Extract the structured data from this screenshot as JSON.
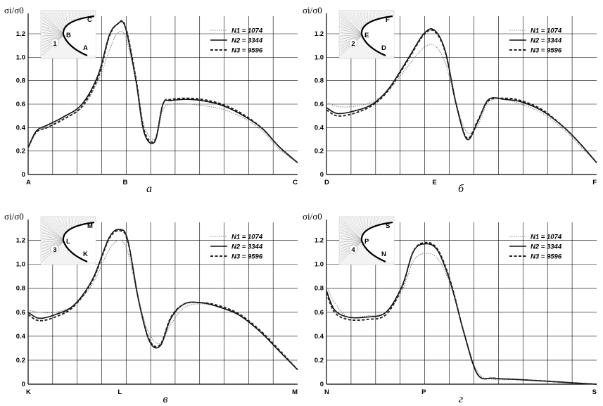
{
  "figure": {
    "y_label": "σi/σ0",
    "legend": [
      "N1 = 1074",
      "N2 = 3344",
      "N3 = 9596"
    ]
  },
  "chart_data": [
    {
      "type": "line",
      "caption": "а",
      "inset_label": "1",
      "inset_points": [
        "B",
        "C",
        "A"
      ],
      "x_ticks": [
        "A",
        "B",
        "C"
      ],
      "ylim": [
        0,
        1.35
      ],
      "y_ticks": [
        "0",
        "0.2",
        "0.4",
        "0.6",
        "0.8",
        "1.0",
        "1.2"
      ],
      "grid": true,
      "legend_position": "top-right",
      "series": [
        {
          "name": "N1 = 1074",
          "x": [
            0,
            0.03,
            0.07,
            0.13,
            0.2,
            0.26,
            0.3,
            0.33,
            0.36,
            0.4,
            0.43,
            0.47,
            0.5,
            0.53,
            0.6,
            0.67,
            0.73,
            0.8,
            0.87,
            0.93,
            1
          ],
          "y": [
            0.22,
            0.36,
            0.4,
            0.48,
            0.57,
            0.8,
            1.05,
            1.2,
            1.18,
            0.8,
            0.42,
            0.3,
            0.55,
            0.6,
            0.6,
            0.58,
            0.55,
            0.48,
            0.37,
            0.22,
            0.1
          ]
        },
        {
          "name": "N2 = 3344",
          "x": [
            0,
            0.03,
            0.07,
            0.13,
            0.2,
            0.26,
            0.3,
            0.33,
            0.36,
            0.4,
            0.43,
            0.47,
            0.5,
            0.53,
            0.6,
            0.67,
            0.73,
            0.8,
            0.87,
            0.93,
            1
          ],
          "y": [
            0.23,
            0.37,
            0.42,
            0.49,
            0.6,
            0.85,
            1.18,
            1.28,
            1.26,
            0.8,
            0.36,
            0.28,
            0.6,
            0.63,
            0.64,
            0.62,
            0.58,
            0.5,
            0.39,
            0.24,
            0.1
          ]
        },
        {
          "name": "N3 = 9596",
          "x": [
            0,
            0.03,
            0.07,
            0.13,
            0.2,
            0.26,
            0.3,
            0.33,
            0.36,
            0.4,
            0.43,
            0.47,
            0.5,
            0.53,
            0.6,
            0.67,
            0.73,
            0.8,
            0.87,
            0.93,
            1
          ],
          "y": [
            0.23,
            0.36,
            0.4,
            0.47,
            0.58,
            0.83,
            1.17,
            1.28,
            1.27,
            0.82,
            0.38,
            0.29,
            0.6,
            0.64,
            0.65,
            0.63,
            0.59,
            0.51,
            0.39,
            0.24,
            0.1
          ]
        }
      ]
    },
    {
      "type": "line",
      "caption": "б",
      "inset_label": "2",
      "inset_points": [
        "E",
        "F",
        "D"
      ],
      "x_ticks": [
        "D",
        "E",
        "F"
      ],
      "ylim": [
        0,
        1.35
      ],
      "y_ticks": [
        "0",
        "0.2",
        "0.4",
        "0.6",
        "0.8",
        "1.0",
        "1.2"
      ],
      "grid": true,
      "legend_position": "top-right",
      "series": [
        {
          "name": "N1 = 1074",
          "x": [
            0,
            0.04,
            0.1,
            0.17,
            0.23,
            0.3,
            0.36,
            0.4,
            0.44,
            0.48,
            0.52,
            0.56,
            0.6,
            0.66,
            0.72,
            0.8,
            0.88,
            0.94,
            1
          ],
          "y": [
            0.62,
            0.58,
            0.58,
            0.62,
            0.72,
            0.92,
            1.08,
            1.1,
            0.95,
            0.6,
            0.36,
            0.42,
            0.62,
            0.64,
            0.6,
            0.52,
            0.38,
            0.24,
            0.1
          ]
        },
        {
          "name": "N2 = 3344",
          "x": [
            0,
            0.04,
            0.1,
            0.17,
            0.23,
            0.3,
            0.36,
            0.4,
            0.44,
            0.48,
            0.52,
            0.56,
            0.6,
            0.66,
            0.72,
            0.8,
            0.88,
            0.94,
            1
          ],
          "y": [
            0.57,
            0.52,
            0.54,
            0.6,
            0.73,
            0.98,
            1.2,
            1.23,
            1.05,
            0.6,
            0.3,
            0.45,
            0.64,
            0.64,
            0.62,
            0.54,
            0.4,
            0.26,
            0.1
          ]
        },
        {
          "name": "N3 = 9596",
          "x": [
            0,
            0.04,
            0.1,
            0.17,
            0.23,
            0.3,
            0.36,
            0.4,
            0.44,
            0.48,
            0.52,
            0.56,
            0.6,
            0.66,
            0.72,
            0.8,
            0.88,
            0.94,
            1
          ],
          "y": [
            0.55,
            0.5,
            0.52,
            0.59,
            0.72,
            0.97,
            1.19,
            1.22,
            1.04,
            0.6,
            0.31,
            0.46,
            0.63,
            0.65,
            0.63,
            0.55,
            0.4,
            0.26,
            0.1
          ]
        }
      ]
    },
    {
      "type": "line",
      "caption": "в",
      "inset_label": "3",
      "inset_points": [
        "L",
        "M",
        "K"
      ],
      "x_ticks": [
        "K",
        "L",
        "M"
      ],
      "ylim": [
        0,
        1.35
      ],
      "y_ticks": [
        "0",
        "0.2",
        "0.4",
        "0.6",
        "0.8",
        "1.0",
        "1.2"
      ],
      "grid": true,
      "legend_position": "top-right",
      "series": [
        {
          "name": "N1 = 1074",
          "x": [
            0,
            0.04,
            0.1,
            0.17,
            0.24,
            0.3,
            0.34,
            0.37,
            0.41,
            0.45,
            0.49,
            0.53,
            0.58,
            0.64,
            0.7,
            0.78,
            0.86,
            0.93,
            1
          ],
          "y": [
            0.62,
            0.6,
            0.6,
            0.66,
            0.84,
            1.12,
            1.2,
            1.1,
            0.7,
            0.42,
            0.34,
            0.5,
            0.64,
            0.67,
            0.65,
            0.58,
            0.44,
            0.28,
            0.12
          ]
        },
        {
          "name": "N2 = 3344",
          "x": [
            0,
            0.04,
            0.1,
            0.17,
            0.24,
            0.3,
            0.34,
            0.37,
            0.41,
            0.45,
            0.49,
            0.53,
            0.58,
            0.64,
            0.7,
            0.78,
            0.86,
            0.93,
            1
          ],
          "y": [
            0.6,
            0.55,
            0.58,
            0.66,
            0.88,
            1.22,
            1.29,
            1.2,
            0.7,
            0.36,
            0.32,
            0.55,
            0.67,
            0.68,
            0.65,
            0.58,
            0.44,
            0.28,
            0.12
          ]
        },
        {
          "name": "N3 = 9596",
          "x": [
            0,
            0.04,
            0.1,
            0.17,
            0.24,
            0.3,
            0.34,
            0.37,
            0.41,
            0.45,
            0.49,
            0.53,
            0.58,
            0.64,
            0.7,
            0.78,
            0.86,
            0.93,
            1
          ],
          "y": [
            0.58,
            0.53,
            0.56,
            0.65,
            0.87,
            1.21,
            1.28,
            1.19,
            0.7,
            0.37,
            0.33,
            0.56,
            0.67,
            0.68,
            0.66,
            0.59,
            0.45,
            0.29,
            0.12
          ]
        }
      ]
    },
    {
      "type": "line",
      "caption": "г",
      "inset_label": "4",
      "inset_points": [
        "P",
        "S",
        "N"
      ],
      "x_ticks": [
        "N",
        "P",
        "S"
      ],
      "ylim": [
        0,
        1.35
      ],
      "y_ticks": [
        "0",
        "0.2",
        "0.4",
        "0.6",
        "0.8",
        "1.0",
        "1.2"
      ],
      "grid": true,
      "legend_position": "top-right",
      "series": [
        {
          "name": "N1 = 1074",
          "x": [
            0,
            0.03,
            0.08,
            0.15,
            0.22,
            0.28,
            0.32,
            0.36,
            0.41,
            0.46,
            0.51,
            0.56,
            0.62,
            0.7,
            0.78,
            0.85,
            0.92,
            1
          ],
          "y": [
            0.82,
            0.68,
            0.56,
            0.57,
            0.6,
            0.78,
            1.02,
            1.09,
            1.05,
            0.82,
            0.42,
            0.1,
            0.04,
            0.04,
            0.03,
            0.02,
            0.01,
            0
          ]
        },
        {
          "name": "N2 = 3344",
          "x": [
            0,
            0.03,
            0.08,
            0.15,
            0.22,
            0.28,
            0.32,
            0.36,
            0.41,
            0.46,
            0.51,
            0.56,
            0.62,
            0.7,
            0.78,
            0.85,
            0.92,
            1
          ],
          "y": [
            0.78,
            0.62,
            0.56,
            0.56,
            0.6,
            0.82,
            1.1,
            1.17,
            1.12,
            0.84,
            0.42,
            0.08,
            0.05,
            0.04,
            0.03,
            0.02,
            0.01,
            0
          ]
        },
        {
          "name": "N3 = 9596",
          "x": [
            0,
            0.03,
            0.08,
            0.15,
            0.22,
            0.28,
            0.32,
            0.36,
            0.41,
            0.46,
            0.51,
            0.56,
            0.62,
            0.7,
            0.78,
            0.85,
            0.92,
            1
          ],
          "y": [
            0.76,
            0.6,
            0.54,
            0.54,
            0.58,
            0.81,
            1.1,
            1.18,
            1.13,
            0.85,
            0.42,
            0.08,
            0.05,
            0.04,
            0.03,
            0.02,
            0.01,
            0
          ]
        }
      ]
    }
  ]
}
